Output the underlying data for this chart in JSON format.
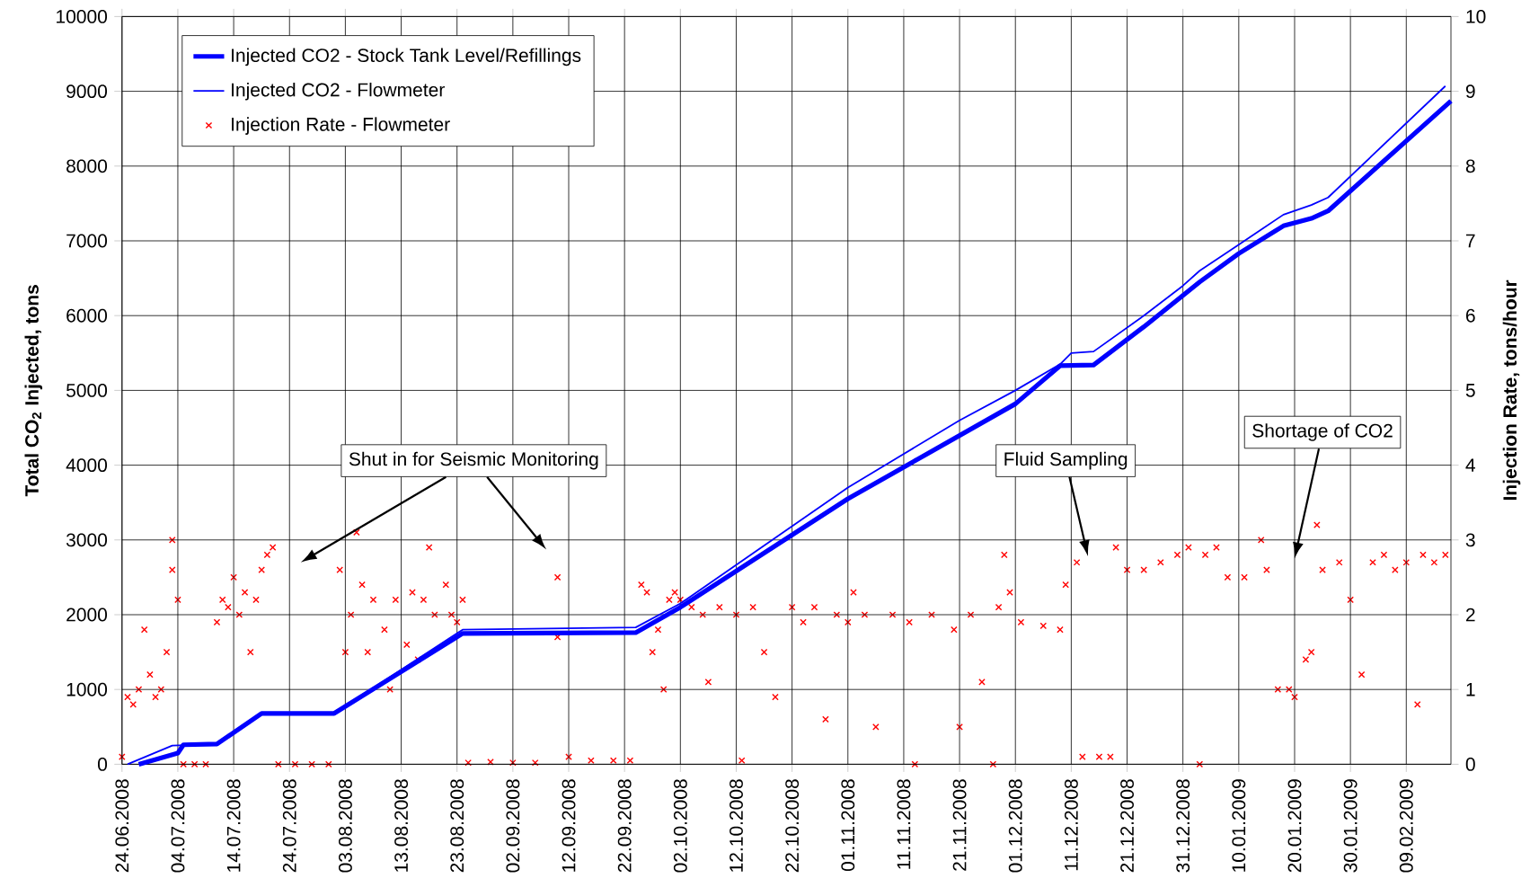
{
  "chart_data": {
    "type": "line",
    "ylabel": "Total CO$_{2}$ Injected, tons",
    "y2label": "Injection Rate, tons/hour",
    "xlim": [
      "2008-06-24",
      "2009-02-17"
    ],
    "xticks": [
      {
        "value": "2008-06-24",
        "label": "24.06.2008"
      },
      {
        "value": "2008-07-04",
        "label": "04.07.2008"
      },
      {
        "value": "2008-07-14",
        "label": "14.07.2008"
      },
      {
        "value": "2008-07-24",
        "label": "24.07.2008"
      },
      {
        "value": "2008-08-03",
        "label": "03.08.2008"
      },
      {
        "value": "2008-08-13",
        "label": "13.08.2008"
      },
      {
        "value": "2008-08-23",
        "label": "23.08.2008"
      },
      {
        "value": "2008-09-02",
        "label": "02.09.2008"
      },
      {
        "value": "2008-09-12",
        "label": "12.09.2008"
      },
      {
        "value": "2008-09-22",
        "label": "22.09.2008"
      },
      {
        "value": "2008-10-02",
        "label": "02.10.2008"
      },
      {
        "value": "2008-10-12",
        "label": "12.10.2008"
      },
      {
        "value": "2008-10-22",
        "label": "22.10.2008"
      },
      {
        "value": "2008-11-01",
        "label": "01.11.2008"
      },
      {
        "value": "2008-11-11",
        "label": "11.11.2008"
      },
      {
        "value": "2008-11-21",
        "label": "21.11.2008"
      },
      {
        "value": "2008-12-01",
        "label": "01.12.2008"
      },
      {
        "value": "2008-12-11",
        "label": "11.12.2008"
      },
      {
        "value": "2008-12-21",
        "label": "21.12.2008"
      },
      {
        "value": "2008-12-31",
        "label": "31.12.2008"
      },
      {
        "value": "2009-01-10",
        "label": "10.01.2009"
      },
      {
        "value": "2009-01-20",
        "label": "20.01.2009"
      },
      {
        "value": "2009-01-30",
        "label": "30.01.2009"
      },
      {
        "value": "2009-02-09",
        "label": "09.02.2009"
      }
    ],
    "ylim": [
      0,
      10000
    ],
    "yticks": [
      0,
      1000,
      2000,
      3000,
      4000,
      5000,
      6000,
      7000,
      8000,
      9000,
      10000
    ],
    "y2lim": [
      0,
      10
    ],
    "y2ticks": [
      0,
      1,
      2,
      3,
      4,
      5,
      6,
      7,
      8,
      9,
      10
    ],
    "grid": true,
    "legend": "top left",
    "annotations": [
      "Shut in for Seismic Monitoring",
      "Fluid Sampling",
      "Shortage of CO2"
    ],
    "series": [
      {
        "name": "Injected CO2 - Stock Tank Level/Refillings",
        "color": "#0000ff",
        "marker": "none",
        "line_style": "solid",
        "x": [
          "2008-06-27",
          "2008-07-04",
          "2008-07-05",
          "2008-07-11",
          "2008-07-19",
          "2008-08-01",
          "2008-08-24",
          "2008-09-24",
          "2008-10-02",
          "2008-11-01",
          "2008-12-01",
          "2008-12-09",
          "2008-12-15",
          "2008-12-24",
          "2009-01-03",
          "2009-01-10",
          "2009-01-18",
          "2009-01-23",
          "2009-01-26",
          "2009-02-17"
        ],
        "values": [
          0,
          150,
          260,
          270,
          680,
          680,
          1750,
          1760,
          2100,
          3550,
          4820,
          5330,
          5340,
          5850,
          6450,
          6830,
          7200,
          7300,
          7400,
          8870
        ]
      },
      {
        "name": "Injected CO2 - Flowmeter",
        "color": "#0000ff",
        "marker": "none",
        "line_style": "solid",
        "x": [
          "2008-06-25",
          "2008-07-03",
          "2008-07-11",
          "2008-07-19",
          "2008-08-01",
          "2008-08-24",
          "2008-09-24",
          "2008-10-02",
          "2008-11-01",
          "2008-11-21",
          "2008-12-01",
          "2008-12-09",
          "2008-12-11",
          "2008-12-15",
          "2008-12-24",
          "2008-12-31",
          "2009-01-03",
          "2009-01-10",
          "2009-01-18",
          "2009-01-23",
          "2009-01-26",
          "2009-02-16"
        ],
        "values": [
          0,
          250,
          270,
          680,
          680,
          1800,
          1830,
          2150,
          3700,
          4600,
          5000,
          5350,
          5500,
          5520,
          6000,
          6400,
          6600,
          6950,
          7350,
          7480,
          7580,
          9070
        ]
      },
      {
        "name": "Injection Rate - Flowmeter",
        "type": "scatter",
        "axis": "y2",
        "color": "#ff0000",
        "marker": "cross",
        "x": [
          "2008-06-24",
          "2008-06-25",
          "2008-06-26",
          "2008-06-27",
          "2008-06-28",
          "2008-06-29",
          "2008-06-30",
          "2008-07-01",
          "2008-07-02",
          "2008-07-03",
          "2008-07-03",
          "2008-07-04",
          "2008-07-05",
          "2008-07-07",
          "2008-07-09",
          "2008-07-11",
          "2008-07-12",
          "2008-07-13",
          "2008-07-14",
          "2008-07-15",
          "2008-07-16",
          "2008-07-17",
          "2008-07-18",
          "2008-07-19",
          "2008-07-20",
          "2008-07-21",
          "2008-07-22",
          "2008-07-25",
          "2008-07-28",
          "2008-07-31",
          "2008-08-02",
          "2008-08-03",
          "2008-08-04",
          "2008-08-05",
          "2008-08-06",
          "2008-08-07",
          "2008-08-08",
          "2008-08-10",
          "2008-08-11",
          "2008-08-12",
          "2008-08-14",
          "2008-08-15",
          "2008-08-16",
          "2008-08-17",
          "2008-08-18",
          "2008-08-19",
          "2008-08-21",
          "2008-08-22",
          "2008-08-23",
          "2008-08-24",
          "2008-08-25",
          "2008-08-29",
          "2008-09-02",
          "2008-09-06",
          "2008-09-10",
          "2008-09-10",
          "2008-09-12",
          "2008-09-16",
          "2008-09-20",
          "2008-09-23",
          "2008-09-25",
          "2008-09-26",
          "2008-09-27",
          "2008-09-28",
          "2008-09-29",
          "2008-09-30",
          "2008-10-01",
          "2008-10-02",
          "2008-10-04",
          "2008-10-06",
          "2008-10-07",
          "2008-10-09",
          "2008-10-12",
          "2008-10-13",
          "2008-10-15",
          "2008-10-17",
          "2008-10-19",
          "2008-10-22",
          "2008-10-24",
          "2008-10-26",
          "2008-10-28",
          "2008-10-30",
          "2008-11-01",
          "2008-11-02",
          "2008-11-04",
          "2008-11-06",
          "2008-11-09",
          "2008-11-12",
          "2008-11-13",
          "2008-11-16",
          "2008-11-20",
          "2008-11-21",
          "2008-11-23",
          "2008-11-25",
          "2008-11-27",
          "2008-11-28",
          "2008-11-29",
          "2008-11-30",
          "2008-12-02",
          "2008-12-06",
          "2008-12-09",
          "2008-12-10",
          "2008-12-12",
          "2008-12-13",
          "2008-12-16",
          "2008-12-18",
          "2008-12-19",
          "2008-12-21",
          "2008-12-24",
          "2008-12-27",
          "2008-12-30",
          "2009-01-01",
          "2009-01-03",
          "2009-01-04",
          "2009-01-06",
          "2009-01-08",
          "2009-01-11",
          "2009-01-14",
          "2009-01-15",
          "2009-01-17",
          "2009-01-19",
          "2009-01-20",
          "2009-01-22",
          "2009-01-23",
          "2009-01-24",
          "2009-01-25",
          "2009-01-28",
          "2009-01-30",
          "2009-02-01",
          "2009-02-03",
          "2009-02-05",
          "2009-02-07",
          "2009-02-09",
          "2009-02-11",
          "2009-02-12",
          "2009-02-14",
          "2009-02-16"
        ],
        "values": [
          0.1,
          0.9,
          0.8,
          1.0,
          1.8,
          1.2,
          0.9,
          1.0,
          1.5,
          2.6,
          3.0,
          2.2,
          0,
          0,
          0,
          1.9,
          2.2,
          2.1,
          2.5,
          2.0,
          2.3,
          1.5,
          2.2,
          2.6,
          2.8,
          2.9,
          0,
          0,
          0,
          0,
          2.6,
          1.5,
          2.0,
          3.1,
          2.4,
          1.5,
          2.2,
          1.8,
          1.0,
          2.2,
          1.6,
          2.3,
          1.4,
          2.2,
          2.9,
          2.0,
          2.4,
          2.0,
          1.9,
          2.2,
          0.02,
          0.03,
          0.02,
          0.02,
          2.5,
          1.7,
          0.1,
          0.05,
          0.05,
          0.05,
          2.4,
          2.3,
          1.5,
          1.8,
          1.0,
          2.2,
          2.3,
          2.2,
          2.1,
          2.0,
          1.1,
          2.1,
          2.0,
          0.05,
          2.1,
          1.5,
          0.9,
          2.1,
          1.9,
          2.1,
          0.6,
          2.0,
          1.9,
          2.3,
          2.0,
          0.5,
          2.0,
          1.9,
          0,
          2.0,
          1.8,
          0.5,
          2.0,
          1.1,
          0,
          2.1,
          2.8,
          2.3,
          1.9,
          1.85,
          1.8,
          2.4,
          2.7,
          0.1,
          0.1,
          0.1,
          2.9,
          2.6,
          2.6,
          2.7,
          2.8,
          2.9,
          0,
          2.8,
          2.9,
          2.5,
          2.5,
          3.0,
          2.6,
          1.0,
          1.0,
          0.9,
          1.4,
          1.5,
          3.2,
          2.6,
          2.7,
          2.2,
          1.2,
          2.7,
          2.8,
          2.6,
          2.7,
          0.8,
          2.8,
          2.7,
          2.8
        ]
      }
    ]
  }
}
